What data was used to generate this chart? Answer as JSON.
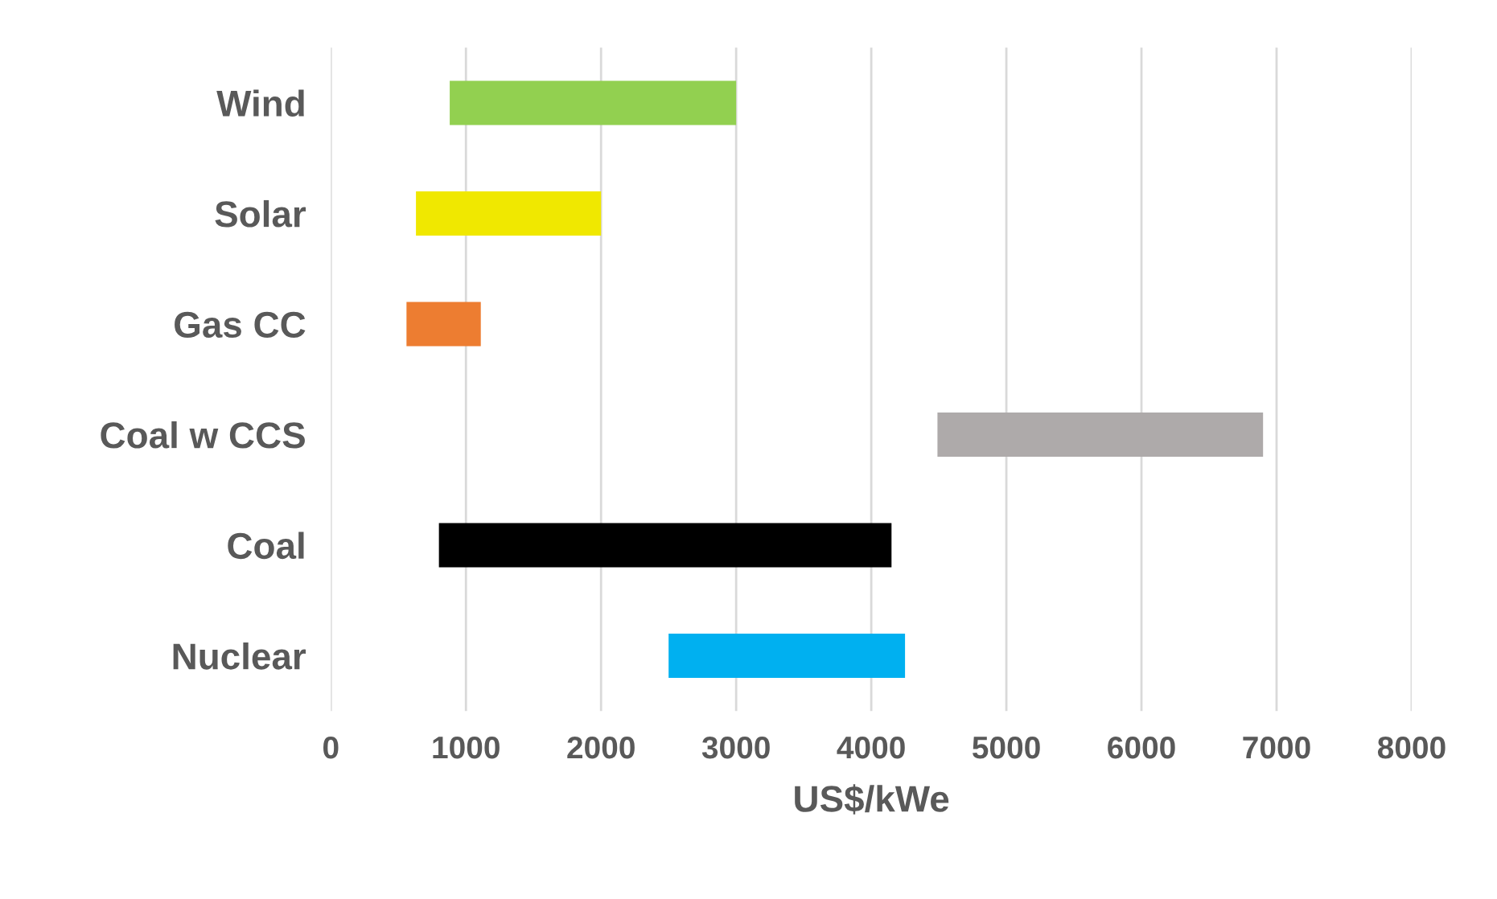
{
  "chart_data": {
    "type": "bar",
    "orientation": "horizontal",
    "xlabel": "US$/kWe",
    "categories": [
      "Wind",
      "Solar",
      "Gas CC",
      "Coal w CCS",
      "Coal",
      "Nuclear"
    ],
    "base": [
      880,
      630,
      560,
      4490,
      800,
      2500
    ],
    "values": [
      2120,
      1370,
      550,
      2410,
      3350,
      1750
    ],
    "colors": [
      "#92d050",
      "#f0e800",
      "#ed7d31",
      "#aeaaaa",
      "#000000",
      "#00b0f0"
    ],
    "xlim": [
      0,
      8000
    ],
    "xticks": [
      0,
      1000,
      2000,
      3000,
      4000,
      5000,
      6000,
      7000,
      8000
    ],
    "grid": "x"
  }
}
